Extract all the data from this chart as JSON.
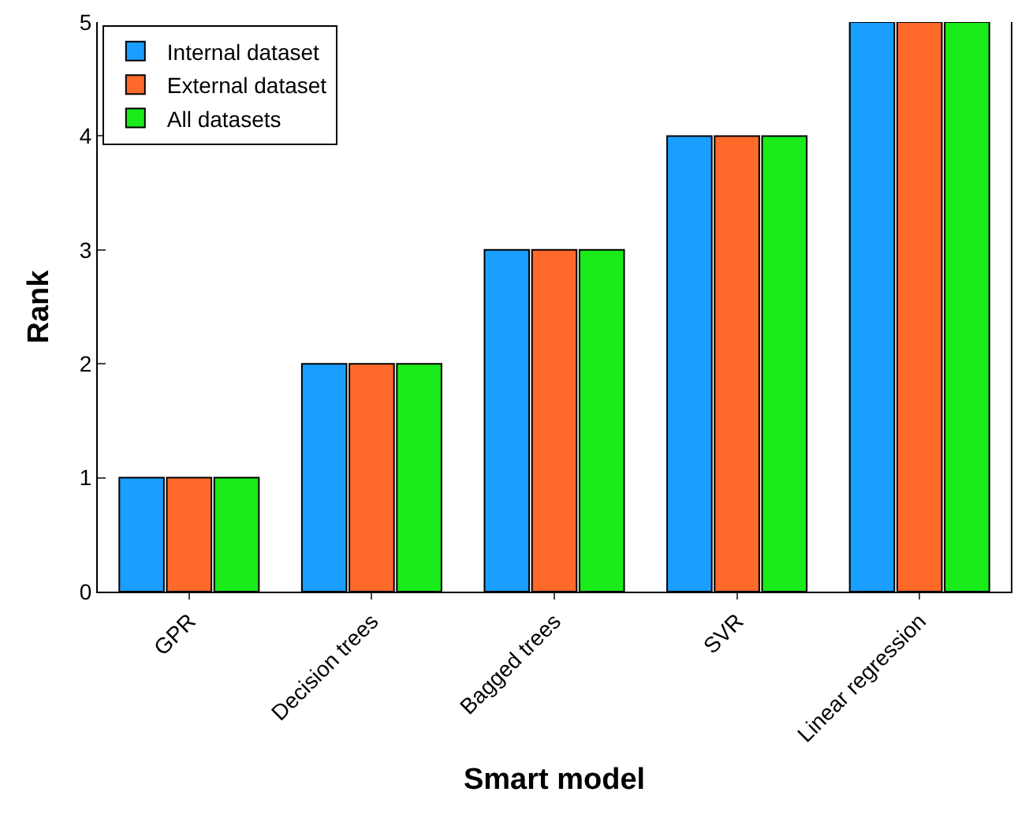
{
  "chart_data": {
    "type": "bar",
    "xlabel": "Smart model",
    "ylabel": "Rank",
    "categories": [
      "GPR",
      "Decision trees",
      "Bagged trees",
      "SVR",
      "Linear regression"
    ],
    "series": [
      {
        "name": "Internal dataset",
        "color": "#1a9eff",
        "values": [
          1,
          2,
          3,
          4,
          5
        ]
      },
      {
        "name": "External dataset",
        "color": "#ff6a2b",
        "values": [
          1,
          2,
          3,
          4,
          5
        ]
      },
      {
        "name": "All datasets",
        "color": "#1aeb1a",
        "values": [
          1,
          2,
          3,
          4,
          5
        ]
      }
    ],
    "ylim": [
      0,
      5
    ],
    "yticks": [
      0,
      1,
      2,
      3,
      4,
      5
    ],
    "grid": false,
    "legend": "top left"
  }
}
